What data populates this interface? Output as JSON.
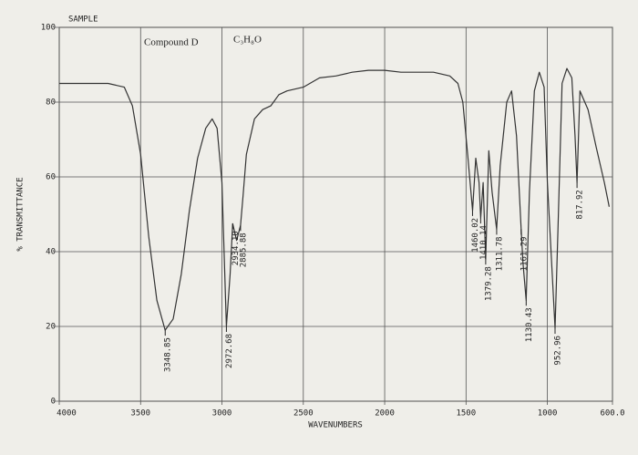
{
  "chart_data": {
    "type": "line",
    "sample_label": "SAMPLE",
    "annotations_text": [
      "Compound D",
      "C₃H₈O"
    ],
    "xlabel": "WAVENUMBERS",
    "ylabel": "% TRANSMITTANCE",
    "xlim": [
      4000,
      600
    ],
    "ylim": [
      0,
      100
    ],
    "xticks": [
      4000,
      3500,
      3000,
      2500,
      2000,
      1500,
      1000,
      {
        "value": 600,
        "label": "600.0"
      }
    ],
    "yticks": [
      0,
      20,
      40,
      60,
      80,
      100
    ],
    "grid": true,
    "series": [
      {
        "color": "#333333",
        "x": [
          4000,
          3700,
          3600,
          3550,
          3500,
          3450,
          3400,
          3348.85,
          3300,
          3250,
          3200,
          3150,
          3100,
          3060,
          3030,
          3000,
          2972.68,
          2950,
          2934.1,
          2910,
          2885.88,
          2870,
          2850,
          2800,
          2750,
          2700,
          2650,
          2600,
          2500,
          2400,
          2300,
          2200,
          2100,
          2000,
          1900,
          1800,
          1700,
          1600,
          1550,
          1520,
          1490,
          1460.02,
          1440,
          1420,
          1410.14,
          1395,
          1379.28,
          1360,
          1340,
          1311.78,
          1290,
          1250,
          1220,
          1190,
          1161.29,
          1150,
          1130.43,
          1110,
          1080,
          1050,
          1020,
          1000,
          970,
          952.96,
          935,
          910,
          880,
          850,
          830,
          817.92,
          800,
          750,
          700,
          650,
          620
        ],
        "values": [
          85,
          85,
          84,
          79,
          66,
          44,
          27,
          19,
          22,
          34,
          51,
          65,
          73,
          75.5,
          73,
          58.5,
          20,
          34,
          47.5,
          43,
          47,
          55,
          66,
          75.5,
          78,
          79,
          82,
          83,
          84,
          86.5,
          87,
          88,
          88.5,
          88.5,
          88,
          88,
          88,
          87,
          85,
          80,
          66,
          51,
          65,
          58.5,
          49,
          58.5,
          38,
          67,
          56,
          46,
          63,
          80,
          83,
          71,
          46,
          37,
          27,
          56,
          83,
          88,
          84,
          58.5,
          34,
          19.5,
          46,
          85,
          89,
          86.5,
          71,
          58.5,
          83,
          78,
          68,
          58.5,
          52
        ]
      }
    ],
    "peaks": [
      {
        "x": 3348.85,
        "label": "3348.85",
        "y": 19
      },
      {
        "x": 2972.68,
        "label": "2972.68",
        "y": 20
      },
      {
        "x": 2934.1,
        "label": "2934.10",
        "y": 47.5
      },
      {
        "x": 2885.88,
        "label": "2885.88",
        "y": 47
      },
      {
        "x": 1460.02,
        "label": "1460.02",
        "y": 51
      },
      {
        "x": 1410.14,
        "label": "1410.14",
        "y": 49
      },
      {
        "x": 1379.28,
        "label": "1379.28",
        "y": 38
      },
      {
        "x": 1311.78,
        "label": "1311.78",
        "y": 46
      },
      {
        "x": 1161.29,
        "label": "1161.29",
        "y": 46
      },
      {
        "x": 1130.43,
        "label": "1130.43",
        "y": 27
      },
      {
        "x": 952.96,
        "label": "952.96",
        "y": 19.5
      },
      {
        "x": 817.92,
        "label": "817.92",
        "y": 58.5
      }
    ]
  }
}
